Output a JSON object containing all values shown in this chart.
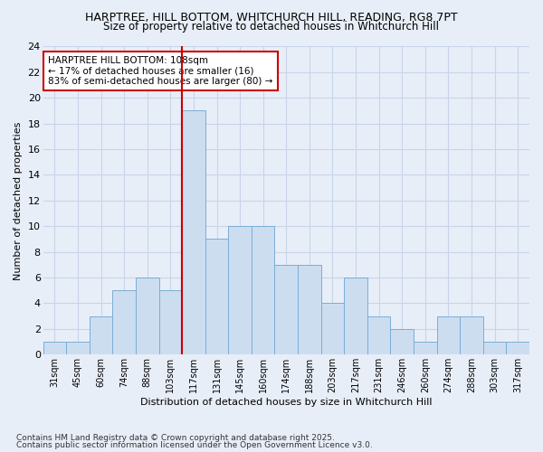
{
  "title1": "HARPTREE, HILL BOTTOM, WHITCHURCH HILL, READING, RG8 7PT",
  "title2": "Size of property relative to detached houses in Whitchurch Hill",
  "xlabel": "Distribution of detached houses by size in Whitchurch Hill",
  "ylabel": "Number of detached properties",
  "categories": [
    "31sqm",
    "45sqm",
    "60sqm",
    "74sqm",
    "88sqm",
    "103sqm",
    "117sqm",
    "131sqm",
    "145sqm",
    "160sqm",
    "174sqm",
    "188sqm",
    "203sqm",
    "217sqm",
    "231sqm",
    "246sqm",
    "260sqm",
    "274sqm",
    "288sqm",
    "303sqm",
    "317sqm"
  ],
  "values": [
    1,
    1,
    3,
    5,
    6,
    5,
    19,
    9,
    10,
    10,
    7,
    7,
    4,
    6,
    3,
    2,
    1,
    3,
    3,
    1,
    1
  ],
  "bar_color": "#ccddf0",
  "bar_edge_color": "#7aaed6",
  "vline_color": "#cc0000",
  "annotation_title": "HARPTREE HILL BOTTOM: 108sqm",
  "annotation_line1": "← 17% of detached houses are smaller (16)",
  "annotation_line2": "83% of semi-detached houses are larger (80) →",
  "annotation_box_color": "#ffffff",
  "annotation_border_color": "#cc0000",
  "ylim": [
    0,
    24
  ],
  "yticks": [
    0,
    2,
    4,
    6,
    8,
    10,
    12,
    14,
    16,
    18,
    20,
    22,
    24
  ],
  "grid_color": "#c8d4e8",
  "background_color": "#e8eef8",
  "footnote1": "Contains HM Land Registry data © Crown copyright and database right 2025.",
  "footnote2": "Contains public sector information licensed under the Open Government Licence v3.0."
}
